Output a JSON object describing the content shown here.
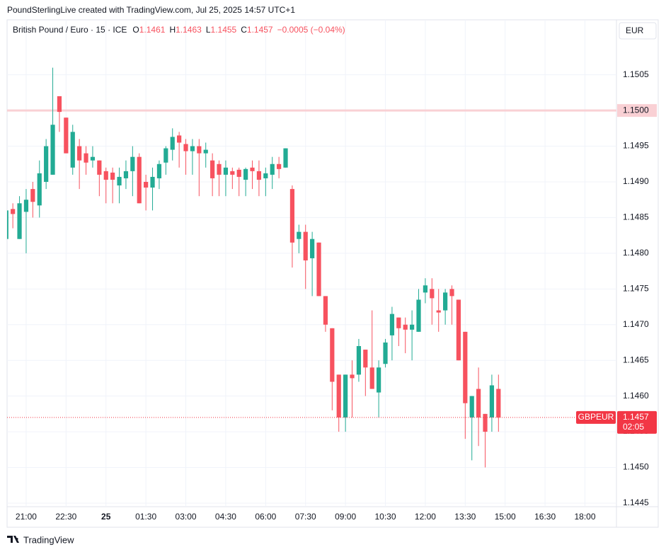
{
  "header": "PoundSterlingLive created with TradingView.com, Jul 25, 2025 14:57 UTC+1",
  "footer": "TradingView",
  "currency": "EUR",
  "chart_data": {
    "type": "candlestick",
    "symbol": "GBPEUR",
    "countdown": "02:05",
    "change": "−0.0005 (−0.04%)",
    "ohlc_labels": [
      "O",
      "H",
      "L",
      "C"
    ],
    "x": [
      -225,
      -210,
      -195,
      -180,
      -165,
      -150,
      -135,
      -120,
      -105,
      -90,
      -75,
      -60,
      -45,
      -30,
      -15,
      0,
      15,
      30,
      45,
      60,
      75,
      90,
      105,
      120,
      135,
      150,
      165,
      180,
      195,
      210,
      225,
      240,
      255,
      270,
      285,
      300,
      315,
      330,
      345,
      360,
      375,
      390,
      405,
      420,
      435,
      450,
      465,
      480,
      495,
      510,
      525,
      540,
      555,
      570,
      585,
      600,
      615,
      630,
      645,
      660,
      675,
      690,
      705,
      720,
      735,
      750,
      765,
      780,
      795,
      810,
      825,
      840,
      855,
      870,
      885
    ],
    "series": [
      {
        "name": "British Pound / Euro · 15 · ICE",
        "up_color": "#22ab94",
        "down_color": "#f7525f",
        "open": [
          1.1482,
          1.14862,
          1.1482,
          1.14858,
          1.1489,
          1.14867,
          1.149,
          1.1491,
          1.1502,
          1.1499,
          1.1492,
          1.1495,
          1.1494,
          1.1493,
          1.1493,
          1.14915,
          1.14913,
          1.14895,
          1.14905,
          1.14915,
          1.14935,
          1.149,
          1.14892,
          1.14905,
          1.14927,
          1.14945,
          1.14965,
          1.14953,
          1.14943,
          1.1495,
          1.1494,
          1.1493,
          1.14925,
          1.1491,
          1.14915,
          1.14917,
          1.14903,
          1.1492,
          1.14915,
          1.14905,
          1.1491,
          1.14925,
          1.1492,
          1.1489,
          1.1482,
          1.1483,
          1.14793,
          1.14815,
          1.1474,
          1.14695,
          1.1463,
          1.1457,
          1.1463,
          1.1463,
          1.14665,
          1.1464,
          1.14605,
          1.14645,
          1.14685,
          1.1471,
          1.147,
          1.14693,
          1.1469,
          1.14745,
          1.1475,
          1.1472,
          1.1472,
          1.1475,
          1.14735,
          1.1469,
          1.1457,
          1.1461,
          1.14575,
          1.1457,
          1.1461
        ],
        "high": [
          1.1486,
          1.1487,
          1.1488,
          1.1489,
          1.149,
          1.1493,
          1.1496,
          1.1506,
          1.1502,
          1.1499,
          1.1498,
          1.1496,
          1.1495,
          1.1495,
          1.1493,
          1.1492,
          1.1492,
          1.1492,
          1.1493,
          1.1495,
          1.1494,
          1.1491,
          1.1492,
          1.1493,
          1.1495,
          1.14975,
          1.1497,
          1.1496,
          1.1496,
          1.1496,
          1.14955,
          1.1494,
          1.1493,
          1.1493,
          1.1492,
          1.1492,
          1.1492,
          1.1493,
          1.1493,
          1.1492,
          1.14935,
          1.14935,
          1.14947,
          1.14895,
          1.1484,
          1.1484,
          1.1483,
          1.14815,
          1.1474,
          1.14695,
          1.1463,
          1.1463,
          1.1465,
          1.1468,
          1.14665,
          1.1472,
          1.1465,
          1.1468,
          1.14725,
          1.1471,
          1.1471,
          1.1472,
          1.1475,
          1.14765,
          1.14765,
          1.1475,
          1.1475,
          1.14755,
          1.14735,
          1.1469,
          1.146,
          1.1464,
          1.14575,
          1.1463,
          1.1463
        ],
        "low": [
          1.1482,
          1.14835,
          1.1482,
          1.148,
          1.1485,
          1.1485,
          1.1489,
          1.1491,
          1.1497,
          1.1494,
          1.1491,
          1.1489,
          1.1491,
          1.1492,
          1.1488,
          1.1487,
          1.1487,
          1.1487,
          1.1489,
          1.1488,
          1.1487,
          1.1486,
          1.1486,
          1.1489,
          1.1491,
          1.1493,
          1.1492,
          1.1491,
          1.1491,
          1.1488,
          1.1492,
          1.1488,
          1.1488,
          1.1488,
          1.1489,
          1.1488,
          1.1488,
          1.1489,
          1.1488,
          1.1488,
          1.1489,
          1.14905,
          1.1492,
          1.1478,
          1.148,
          1.1475,
          1.1474,
          1.1474,
          1.1469,
          1.1458,
          1.1455,
          1.1455,
          1.1457,
          1.1462,
          1.146,
          1.1461,
          1.1457,
          1.1464,
          1.1465,
          1.1467,
          1.1466,
          1.1465,
          1.1469,
          1.1473,
          1.147,
          1.1469,
          1.147,
          1.147,
          1.1465,
          1.1454,
          1.1451,
          1.1453,
          1.145,
          1.1455,
          1.1455
        ],
        "close": [
          1.1486,
          1.14855,
          1.1487,
          1.14875,
          1.14872,
          1.14912,
          1.1495,
          1.1498,
          1.14998,
          1.1494,
          1.1497,
          1.1493,
          1.14927,
          1.14935,
          1.1491,
          1.14903,
          1.14903,
          1.14907,
          1.14915,
          1.14935,
          1.1487,
          1.14892,
          1.14907,
          1.14925,
          1.14947,
          1.14963,
          1.14955,
          1.14943,
          1.1495,
          1.1494,
          1.14945,
          1.14905,
          1.1491,
          1.1492,
          1.1491,
          1.14907,
          1.14918,
          1.14915,
          1.14903,
          1.14912,
          1.14925,
          1.14918,
          1.14947,
          1.14815,
          1.1483,
          1.1479,
          1.1482,
          1.1474,
          1.147,
          1.1462,
          1.1457,
          1.1463,
          1.14625,
          1.1467,
          1.1464,
          1.1461,
          1.1464,
          1.14675,
          1.14715,
          1.14695,
          1.14693,
          1.147,
          1.14735,
          1.14755,
          1.14737,
          1.14717,
          1.14745,
          1.1474,
          1.1465,
          1.1459,
          1.146,
          1.1457,
          1.1455,
          1.14615,
          1.1457
        ]
      }
    ],
    "hline": {
      "value": 1.15,
      "label": "1.1500",
      "color": "#f9d0d4"
    },
    "last_color": "#f23645",
    "xlim": [
      -223,
      1151
    ],
    "xticks": [
      {
        "value": -180,
        "label": "21:00"
      },
      {
        "value": -90,
        "label": "22:30"
      },
      {
        "value": 0,
        "label": "25"
      },
      {
        "value": 90,
        "label": "01:30"
      },
      {
        "value": 180,
        "label": "03:00"
      },
      {
        "value": 270,
        "label": "04:30"
      },
      {
        "value": 360,
        "label": "06:00"
      },
      {
        "value": 450,
        "label": "07:30"
      },
      {
        "value": 540,
        "label": "09:00"
      },
      {
        "value": 630,
        "label": "10:30"
      },
      {
        "value": 720,
        "label": "12:00"
      },
      {
        "value": 810,
        "label": "13:30"
      },
      {
        "value": 900,
        "label": "15:00"
      },
      {
        "value": 990,
        "label": "16:30"
      },
      {
        "value": 1080,
        "label": "18:00"
      }
    ],
    "ylim": [
      1.14445,
      1.15127
    ],
    "yticks": [
      {
        "value": 1.1445,
        "label": "1.1445"
      },
      {
        "value": 1.145,
        "label": "1.1450"
      },
      {
        "value": 1.1455,
        "label": "1.1455"
      },
      {
        "value": 1.146,
        "label": "1.1460"
      },
      {
        "value": 1.1465,
        "label": "1.1465"
      },
      {
        "value": 1.147,
        "label": "1.1470"
      },
      {
        "value": 1.1475,
        "label": "1.1475"
      },
      {
        "value": 1.148,
        "label": "1.1480"
      },
      {
        "value": 1.1485,
        "label": "1.1485"
      },
      {
        "value": 1.149,
        "label": "1.1490"
      },
      {
        "value": 1.1495,
        "label": "1.1495"
      },
      {
        "value": 1.15,
        "label": "1.1500"
      },
      {
        "value": 1.1505,
        "label": "1.1505"
      }
    ],
    "grid": true
  }
}
